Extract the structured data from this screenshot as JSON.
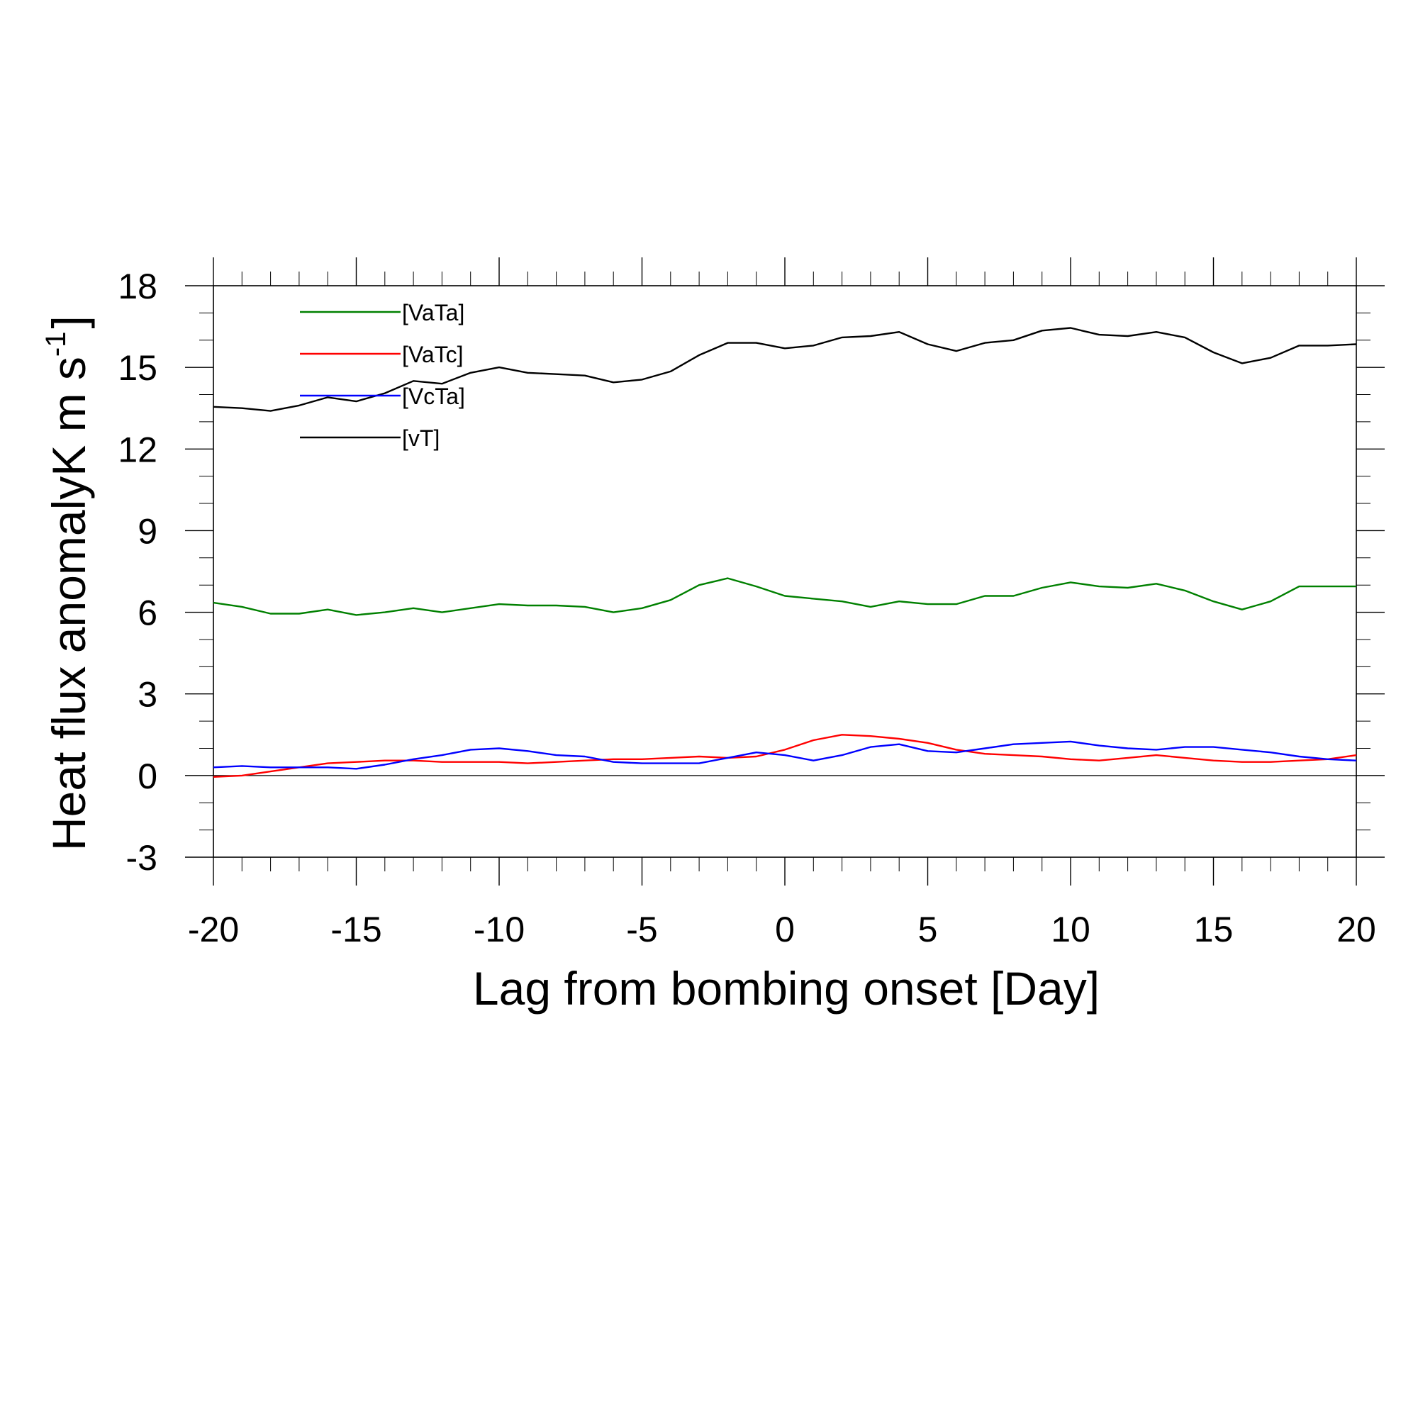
{
  "chart_data": {
    "type": "line",
    "title": "",
    "xlabel": "Lag from bombing onset [Day]",
    "ylabel_main": "Heat flux anomalyK m s",
    "ylabel_sup": "-1",
    "ylabel_close": "]",
    "xlim": [
      -20,
      20
    ],
    "ylim": [
      -3,
      18
    ],
    "x_major_ticks": [
      -20,
      -15,
      -10,
      -5,
      0,
      5,
      10,
      15,
      20
    ],
    "x_tick_labels": [
      "-20",
      "-15",
      "-10",
      "-5",
      "0",
      "5",
      "10",
      "15",
      "20"
    ],
    "y_major_ticks": [
      -3,
      0,
      3,
      6,
      9,
      12,
      15,
      18
    ],
    "y_tick_labels": [
      "-3",
      "0",
      "3",
      "6",
      "9",
      "12",
      "15",
      "18"
    ],
    "x_minor_step": 1,
    "y_minor_step": 1,
    "zero_line": true,
    "grid": false,
    "legend_position": "top-left",
    "x": [
      -20,
      -19,
      -18,
      -17,
      -16,
      -15,
      -14,
      -13,
      -12,
      -11,
      -10,
      -9,
      -8,
      -7,
      -6,
      -5,
      -4,
      -3,
      -2,
      -1,
      0,
      1,
      2,
      3,
      4,
      5,
      6,
      7,
      8,
      9,
      10,
      11,
      12,
      13,
      14,
      15,
      16,
      17,
      18,
      19,
      20
    ],
    "series": [
      {
        "name": "[VaTa]",
        "color": "#008000",
        "values": [
          6.35,
          6.2,
          5.95,
          5.95,
          6.1,
          5.9,
          6.0,
          6.15,
          6.0,
          6.15,
          6.3,
          6.25,
          6.25,
          6.2,
          6.0,
          6.15,
          6.45,
          7.0,
          7.25,
          6.95,
          6.6,
          6.5,
          6.4,
          6.2,
          6.4,
          6.3,
          6.3,
          6.6,
          6.6,
          6.9,
          7.1,
          6.95,
          6.9,
          7.05,
          6.8,
          6.4,
          6.1,
          6.4,
          6.95,
          6.95,
          6.95
        ]
      },
      {
        "name": "[VaTc]",
        "color": "#ff0000",
        "values": [
          -0.05,
          0.0,
          0.15,
          0.3,
          0.45,
          0.5,
          0.55,
          0.55,
          0.5,
          0.5,
          0.5,
          0.45,
          0.5,
          0.55,
          0.6,
          0.6,
          0.65,
          0.7,
          0.65,
          0.7,
          0.95,
          1.3,
          1.5,
          1.45,
          1.35,
          1.2,
          0.95,
          0.8,
          0.75,
          0.7,
          0.6,
          0.55,
          0.65,
          0.75,
          0.65,
          0.55,
          0.5,
          0.5,
          0.55,
          0.6,
          0.75
        ]
      },
      {
        "name": "[VcTa]",
        "color": "#0000ff",
        "values": [
          0.3,
          0.35,
          0.3,
          0.3,
          0.3,
          0.25,
          0.4,
          0.6,
          0.75,
          0.95,
          1.0,
          0.9,
          0.75,
          0.7,
          0.5,
          0.45,
          0.45,
          0.45,
          0.65,
          0.85,
          0.75,
          0.55,
          0.75,
          1.05,
          1.15,
          0.9,
          0.85,
          1.0,
          1.15,
          1.2,
          1.25,
          1.1,
          1.0,
          0.95,
          1.05,
          1.05,
          0.95,
          0.85,
          0.7,
          0.6,
          0.55
        ]
      },
      {
        "name": "[vT]",
        "color": "#000000",
        "values": [
          13.55,
          13.5,
          13.4,
          13.6,
          13.9,
          13.75,
          14.05,
          14.5,
          14.4,
          14.8,
          15.0,
          14.8,
          14.75,
          14.7,
          14.45,
          14.55,
          14.85,
          15.45,
          15.9,
          15.9,
          15.7,
          15.8,
          16.1,
          16.15,
          16.3,
          15.85,
          15.6,
          15.9,
          16.0,
          16.35,
          16.45,
          16.2,
          16.15,
          16.3,
          16.1,
          15.55,
          15.15,
          15.35,
          15.8,
          15.8,
          15.85
        ]
      }
    ]
  }
}
